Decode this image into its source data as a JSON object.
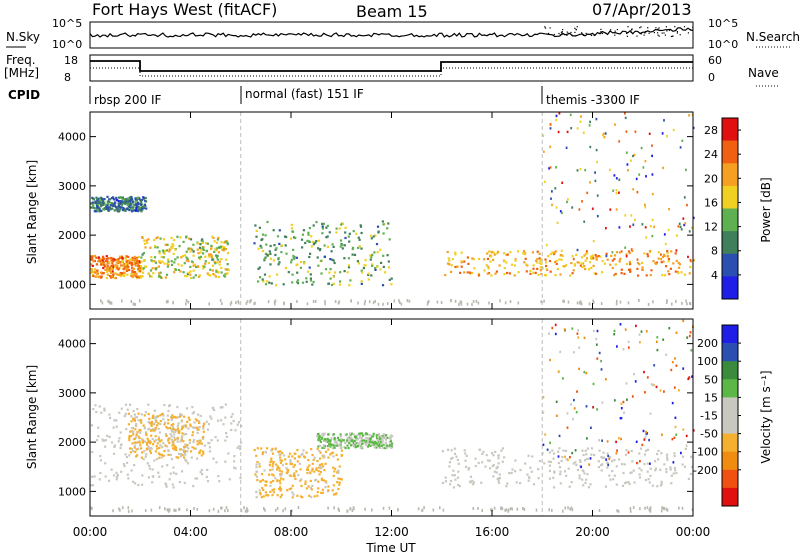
{
  "header": {
    "title": "Fort Hays West (fitACF)",
    "beam": "Beam 15",
    "date": "07/Apr/2013"
  },
  "top_panels": {
    "nsky_label": "N.Sky",
    "nsky_ticks": [
      "10^5",
      "10^0"
    ],
    "nsearch_label": "N.Search",
    "nsearch_ticks": [
      "10^5",
      "10^0"
    ],
    "freq_label": "Freq.",
    "freq_unit": "[MHz]",
    "freq_ticks": [
      "18",
      "8"
    ],
    "nave_label": "Nave",
    "nave_ticks": [
      "60",
      "0"
    ],
    "cpid_label": "CPID",
    "cpid_segments": [
      {
        "label": "rbsp 200 IF",
        "start_h": 0
      },
      {
        "label": "normal (fast) 151 IF",
        "start_h": 6
      },
      {
        "label": "themis -3300 IF",
        "start_h": 18
      }
    ]
  },
  "colors": {
    "power": [
      "#1e1ee6",
      "#2a4fb0",
      "#3f7f5a",
      "#5fb050",
      "#f0d020",
      "#f5a020",
      "#f06010",
      "#e01010"
    ],
    "velocity": [
      "#e01010",
      "#f05010",
      "#f08c10",
      "#f5b030",
      "#c8c8c0",
      "#c8c8c0",
      "#5cb846",
      "#3c8a3c",
      "#2a4fb0",
      "#1e1ee6"
    ],
    "ground_scatter": "#b8b8b0"
  },
  "chart_data": [
    {
      "type": "heatmap",
      "title": "",
      "xlabel": "Time UT",
      "ylabel": "Slant Range [km]",
      "xlim": [
        0,
        24
      ],
      "ylim": [
        500,
        4500
      ],
      "x_tick_labels": [
        "00:00",
        "04:00",
        "08:00",
        "12:00",
        "16:00",
        "20:00",
        "00:00"
      ],
      "y_tick_labels": [
        "1000",
        "2000",
        "3000",
        "4000"
      ],
      "colorbar": {
        "label": "Power [dB]",
        "ticks": [
          "4",
          "8",
          "12",
          "16",
          "20",
          "24",
          "28"
        ],
        "range": [
          0,
          30
        ]
      },
      "bands": [
        {
          "name": "",
          "t0": 0.0,
          "t1": 2.0,
          "r0": 1150,
          "r1": 1600,
          "value": 22
        },
        {
          "name": "",
          "t0": 2.0,
          "t1": 5.5,
          "r0": 1150,
          "r1": 2000,
          "value": 16
        },
        {
          "name": "",
          "t0": 0.0,
          "t1": 2.2,
          "r0": 2500,
          "r1": 2800,
          "value": 8
        },
        {
          "name": "",
          "t0": 6.5,
          "t1": 12.0,
          "r0": 1000,
          "r1": 2300,
          "value": 12
        },
        {
          "name": "",
          "t0": 14.0,
          "t1": 24.0,
          "r0": 1200,
          "r1": 1700,
          "value": 20
        }
      ]
    },
    {
      "type": "heatmap",
      "title": "",
      "xlabel": "Time UT",
      "ylabel": "Slant Range [km]",
      "xlim": [
        0,
        24
      ],
      "ylim": [
        500,
        4500
      ],
      "x_tick_labels": [
        "00:00",
        "04:00",
        "08:00",
        "12:00",
        "16:00",
        "20:00",
        "00:00"
      ],
      "y_tick_labels": [
        "1000",
        "2000",
        "3000",
        "4000"
      ],
      "colorbar": {
        "label": "Velocity [m s⁻¹]",
        "ticks": [
          "200",
          "100",
          "50",
          "15",
          "-15",
          "-50",
          "-100",
          "-200"
        ],
        "range": [
          -250,
          250
        ]
      },
      "bands": [
        {
          "name": "",
          "t0": 0.0,
          "t1": 6.0,
          "r0": 1100,
          "r1": 2800,
          "value": 0
        },
        {
          "name": "",
          "t0": 1.5,
          "t1": 4.5,
          "r0": 1700,
          "r1": 2600,
          "value": -60
        },
        {
          "name": "",
          "t0": 6.5,
          "t1": 10.0,
          "r0": 900,
          "r1": 1900,
          "value": -60
        },
        {
          "name": "",
          "t0": 9.0,
          "t1": 12.0,
          "r0": 1900,
          "r1": 2200,
          "value": 50
        },
        {
          "name": "",
          "t0": 14.0,
          "t1": 24.0,
          "r0": 1100,
          "r1": 1900,
          "value": 0
        }
      ]
    }
  ]
}
